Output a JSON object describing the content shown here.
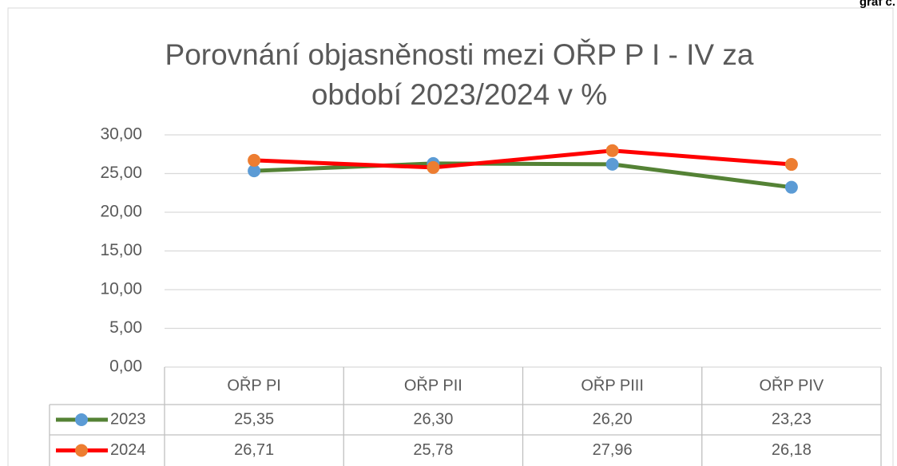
{
  "corner_label": "graf č.",
  "chart_data": {
    "type": "line",
    "title": "Porovnání objasněnosti mezi OŘP P I - IV za období 2023/2024 v %",
    "categories": [
      "OŘP PI",
      "OŘP PII",
      "OŘP PIII",
      "OŘP PIV"
    ],
    "series": [
      {
        "name": "2023",
        "color": "#548235",
        "marker_color": "#5b9bd5",
        "values": [
          25.35,
          26.3,
          26.2,
          23.23
        ],
        "value_labels": [
          "25,35",
          "26,30",
          "26,20",
          "23,23"
        ]
      },
      {
        "name": "2024",
        "color": "#ff0000",
        "marker_color": "#ed7d31",
        "values": [
          26.71,
          25.78,
          27.96,
          26.18
        ],
        "value_labels": [
          "26,71",
          "25,78",
          "27,96",
          "26,18"
        ]
      }
    ],
    "ylim": [
      0,
      30
    ],
    "yticks": [
      {
        "value": 0,
        "label": "0,00"
      },
      {
        "value": 5,
        "label": "5,00"
      },
      {
        "value": 10,
        "label": "10,00"
      },
      {
        "value": 15,
        "label": "15,00"
      },
      {
        "value": 20,
        "label": "20,00"
      },
      {
        "value": 25,
        "label": "25,00"
      },
      {
        "value": 30,
        "label": "30,00"
      }
    ],
    "grid": true,
    "data_table": true
  }
}
